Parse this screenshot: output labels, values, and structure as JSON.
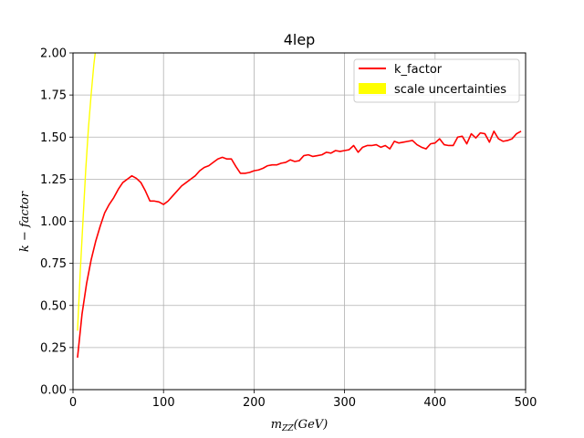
{
  "chart_data": {
    "type": "line",
    "title": "4lep",
    "xlabel_main": "m",
    "xlabel_sub": "ZZ",
    "xlabel_unit": "(GeV)",
    "ylabel": "k − factor",
    "xlim": [
      0,
      500
    ],
    "ylim": [
      0,
      2.0
    ],
    "xticks": [
      0,
      100,
      200,
      300,
      400,
      500
    ],
    "yticks": [
      0.0,
      0.25,
      0.5,
      0.75,
      1.0,
      1.25,
      1.5,
      1.75,
      2.0
    ],
    "xtick_labels": [
      "0",
      "100",
      "200",
      "300",
      "400",
      "500"
    ],
    "ytick_labels": [
      "0.00",
      "0.25",
      "0.50",
      "0.75",
      "1.00",
      "1.25",
      "1.50",
      "1.75",
      "2.00"
    ],
    "grid": true,
    "legend_position": "top-right",
    "series": [
      {
        "name": "k_factor",
        "color": "#ff0000",
        "x": [
          5,
          10,
          15,
          20,
          25,
          30,
          35,
          40,
          45,
          50,
          55,
          60,
          65,
          70,
          75,
          80,
          85,
          90,
          95,
          100,
          105,
          110,
          115,
          120,
          125,
          130,
          135,
          140,
          145,
          150,
          155,
          160,
          165,
          170,
          175,
          180,
          185,
          190,
          195,
          200,
          205,
          210,
          215,
          220,
          225,
          230,
          235,
          240,
          245,
          250,
          255,
          260,
          265,
          270,
          275,
          280,
          285,
          290,
          295,
          300,
          305,
          310,
          315,
          320,
          325,
          330,
          335,
          340,
          345,
          350,
          355,
          360,
          365,
          370,
          375,
          380,
          385,
          390,
          395,
          400,
          405,
          410,
          415,
          420,
          425,
          430,
          435,
          440,
          445,
          450,
          455,
          460,
          465,
          470,
          475,
          480,
          485,
          490,
          495
        ],
        "y": [
          0.19,
          0.45,
          0.63,
          0.77,
          0.88,
          0.97,
          1.05,
          1.1,
          1.14,
          1.19,
          1.23,
          1.25,
          1.27,
          1.255,
          1.23,
          1.18,
          1.12,
          1.12,
          1.115,
          1.1,
          1.12,
          1.15,
          1.18,
          1.21,
          1.23,
          1.25,
          1.27,
          1.3,
          1.32,
          1.33,
          1.35,
          1.37,
          1.38,
          1.37,
          1.37,
          1.325,
          1.285,
          1.285,
          1.29,
          1.3,
          1.305,
          1.315,
          1.33,
          1.335,
          1.335,
          1.345,
          1.35,
          1.365,
          1.355,
          1.36,
          1.39,
          1.395,
          1.385,
          1.39,
          1.395,
          1.41,
          1.405,
          1.42,
          1.415,
          1.42,
          1.425,
          1.45,
          1.41,
          1.44,
          1.45,
          1.45,
          1.455,
          1.44,
          1.45,
          1.43,
          1.475,
          1.465,
          1.47,
          1.475,
          1.48,
          1.455,
          1.44,
          1.43,
          1.46,
          1.465,
          1.49,
          1.455,
          1.45,
          1.45,
          1.5,
          1.505,
          1.46,
          1.52,
          1.495,
          1.525,
          1.52,
          1.47,
          1.535,
          1.49,
          1.475,
          1.48,
          1.49,
          1.52,
          1.535
        ]
      },
      {
        "name": "scale uncertainties",
        "color": "#ffff00",
        "x": [
          5,
          8,
          11,
          14,
          17,
          20,
          23,
          25
        ],
        "y": [
          0.35,
          0.7,
          1.0,
          1.3,
          1.55,
          1.75,
          1.93,
          2.02
        ]
      }
    ]
  }
}
